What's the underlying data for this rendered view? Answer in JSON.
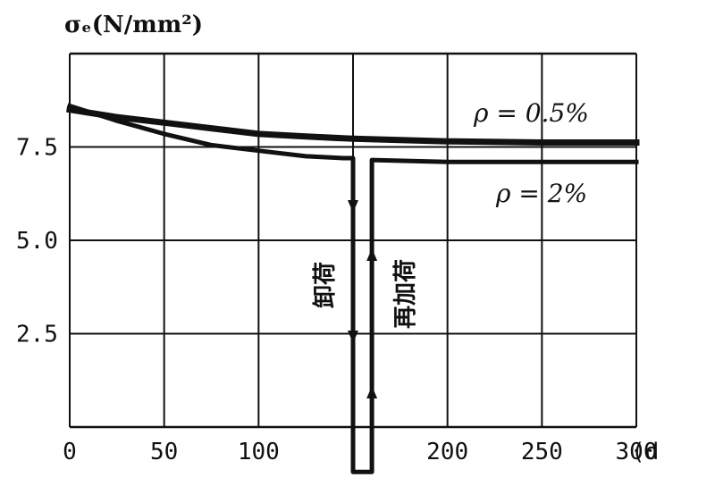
{
  "chart_data": {
    "type": "line",
    "ylabel": "σₑ(N/mm²)",
    "xlabel_fragment": "(d",
    "x_ticks": [
      "0",
      "50",
      "100",
      "200",
      "250",
      "300"
    ],
    "y_ticks": [
      "2.5",
      "5.0",
      "7.5"
    ],
    "xlim": [
      0,
      300
    ],
    "ylim": [
      0,
      10
    ],
    "grid": true,
    "series": [
      {
        "name": "ρ = 0.5%",
        "points": [
          [
            0,
            8.5
          ],
          [
            25,
            8.3
          ],
          [
            50,
            8.15
          ],
          [
            75,
            8.0
          ],
          [
            100,
            7.85
          ],
          [
            125,
            7.78
          ],
          [
            150,
            7.72
          ],
          [
            200,
            7.65
          ],
          [
            250,
            7.62
          ],
          [
            300,
            7.62
          ]
        ]
      },
      {
        "name": "ρ = 2%",
        "points": [
          [
            0,
            8.6
          ],
          [
            25,
            8.2
          ],
          [
            50,
            7.85
          ],
          [
            75,
            7.55
          ],
          [
            100,
            7.4
          ],
          [
            125,
            7.25
          ],
          [
            145,
            7.2
          ],
          [
            150,
            7.2
          ],
          [
            150,
            -1.2
          ],
          [
            160,
            -1.2
          ],
          [
            160,
            7.15
          ],
          [
            200,
            7.1
          ],
          [
            250,
            7.1
          ],
          [
            300,
            7.1
          ]
        ]
      }
    ],
    "annotations": [
      {
        "text": "卸荷",
        "x": 145,
        "y": 3.8
      },
      {
        "text": "再加荷",
        "x": 174,
        "y": 3.6
      }
    ]
  }
}
